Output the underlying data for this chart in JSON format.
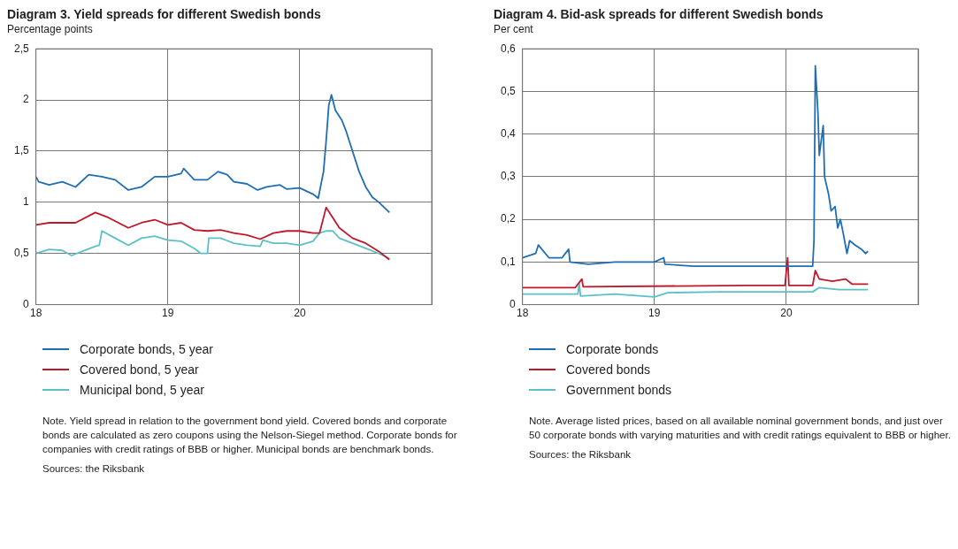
{
  "chart_data": [
    {
      "type": "line",
      "title": "Diagram 3. Yield spreads for different Swedish bonds",
      "subtitle": "Percentage points",
      "xlim": [
        18,
        21
      ],
      "xticks": [
        18,
        19,
        20,
        {
          "value": 21,
          "label": null
        }
      ],
      "ylim": [
        0,
        2.5
      ],
      "yticks": [
        0,
        {
          "value": 0.5,
          "label": "0,5"
        },
        1,
        {
          "value": 1.5,
          "label": "1,5"
        },
        2,
        {
          "value": 2.5,
          "label": "2,5"
        }
      ],
      "grid": true,
      "legend": "bottom",
      "marker": "none",
      "line_style": "solid",
      "series": [
        {
          "name": "Corporate bonds, 5 year",
          "color": "#1f6eb4",
          "x": [
            18.0,
            18.02,
            18.1,
            18.2,
            18.3,
            18.4,
            18.5,
            18.6,
            18.7,
            18.8,
            18.9,
            19.0,
            19.1,
            19.12,
            19.2,
            19.3,
            19.38,
            19.45,
            19.5,
            19.6,
            19.68,
            19.75,
            19.85,
            19.9,
            20.0,
            20.1,
            20.14,
            20.18,
            20.2,
            20.22,
            20.24,
            20.27,
            20.32,
            20.35,
            20.4,
            20.45,
            20.5,
            20.55,
            20.6,
            20.68
          ],
          "values": [
            1.25,
            1.2,
            1.17,
            1.2,
            1.15,
            1.27,
            1.25,
            1.22,
            1.12,
            1.15,
            1.25,
            1.25,
            1.28,
            1.33,
            1.22,
            1.22,
            1.3,
            1.27,
            1.2,
            1.18,
            1.12,
            1.15,
            1.17,
            1.13,
            1.14,
            1.08,
            1.04,
            1.3,
            1.6,
            1.95,
            2.05,
            1.9,
            1.8,
            1.7,
            1.5,
            1.3,
            1.15,
            1.05,
            1.0,
            0.9
          ]
        },
        {
          "name": "Covered bond, 5 year",
          "color": "#c0182a",
          "x": [
            18.0,
            18.1,
            18.2,
            18.3,
            18.45,
            18.55,
            18.7,
            18.8,
            18.9,
            19.0,
            19.1,
            19.2,
            19.3,
            19.4,
            19.5,
            19.6,
            19.7,
            19.8,
            19.9,
            20.0,
            20.1,
            20.15,
            20.2,
            20.25,
            20.3,
            20.4,
            20.5,
            20.6,
            20.68
          ],
          "values": [
            0.78,
            0.8,
            0.8,
            0.8,
            0.9,
            0.85,
            0.75,
            0.8,
            0.83,
            0.78,
            0.8,
            0.73,
            0.72,
            0.73,
            0.7,
            0.68,
            0.64,
            0.7,
            0.72,
            0.72,
            0.7,
            0.7,
            0.95,
            0.85,
            0.75,
            0.65,
            0.6,
            0.52,
            0.44
          ]
        },
        {
          "name": "Municipal bond, 5 year",
          "color": "#5bc0c8",
          "x": [
            18.0,
            18.1,
            18.2,
            18.27,
            18.35,
            18.45,
            18.48,
            18.5,
            18.6,
            18.7,
            18.8,
            18.9,
            19.0,
            19.1,
            19.2,
            19.25,
            19.3,
            19.31,
            19.4,
            19.5,
            19.6,
            19.7,
            19.72,
            19.8,
            19.9,
            20.0,
            20.1,
            20.15,
            20.2,
            20.25,
            20.3,
            20.4,
            20.5,
            20.6,
            20.68
          ],
          "values": [
            0.5,
            0.54,
            0.53,
            0.48,
            0.52,
            0.57,
            0.58,
            0.72,
            0.65,
            0.58,
            0.65,
            0.67,
            0.63,
            0.62,
            0.55,
            0.5,
            0.5,
            0.65,
            0.65,
            0.6,
            0.58,
            0.57,
            0.63,
            0.6,
            0.6,
            0.58,
            0.62,
            0.7,
            0.72,
            0.72,
            0.65,
            0.6,
            0.55,
            0.5,
            0.45
          ]
        }
      ],
      "annotations": [
        "Note. Yield spread in relation to the government bond yield. Covered bonds and corporate bonds are calculated as zero coupons using the Nelson-Siegel method. Corporate bonds for companies with credit ratings of BBB or higher. Municipal bonds are benchmark bonds.",
        "Sources: the Riksbank"
      ]
    },
    {
      "type": "line",
      "title": "Diagram 4. Bid-ask spreads for different Swedish bonds",
      "subtitle": "Per cent",
      "xlim": [
        18,
        21
      ],
      "xticks": [
        18,
        19,
        20,
        {
          "value": 21,
          "label": null
        }
      ],
      "ylim": [
        0,
        0.6
      ],
      "yticks": [
        0,
        {
          "value": 0.1,
          "label": "0,1"
        },
        {
          "value": 0.2,
          "label": "0,2"
        },
        {
          "value": 0.3,
          "label": "0,3"
        },
        {
          "value": 0.4,
          "label": "0,4"
        },
        {
          "value": 0.5,
          "label": "0,5"
        },
        {
          "value": 0.6,
          "label": "0,6"
        }
      ],
      "grid": true,
      "legend": "bottom",
      "marker": "none",
      "line_style": "solid",
      "series": [
        {
          "name": "Corporate bonds",
          "color": "#1f6eb4",
          "x": [
            18.0,
            18.1,
            18.12,
            18.2,
            18.3,
            18.35,
            18.36,
            18.5,
            18.7,
            18.9,
            19.0,
            19.07,
            19.08,
            19.3,
            19.5,
            19.8,
            20.0,
            20.2,
            20.21,
            20.22,
            20.24,
            20.25,
            20.28,
            20.29,
            20.32,
            20.34,
            20.37,
            20.39,
            20.41,
            20.43,
            20.46,
            20.48,
            20.52,
            20.57,
            20.6,
            20.62
          ],
          "values": [
            0.11,
            0.12,
            0.14,
            0.11,
            0.11,
            0.13,
            0.1,
            0.095,
            0.1,
            0.1,
            0.1,
            0.11,
            0.095,
            0.09,
            0.09,
            0.09,
            0.09,
            0.09,
            0.15,
            0.56,
            0.45,
            0.35,
            0.42,
            0.3,
            0.26,
            0.22,
            0.23,
            0.18,
            0.2,
            0.17,
            0.12,
            0.15,
            0.14,
            0.13,
            0.12,
            0.125
          ]
        },
        {
          "name": "Covered bonds",
          "color": "#c0182a",
          "x": [
            18.0,
            18.4,
            18.45,
            18.46,
            19.7,
            19.99,
            20.01,
            20.02,
            20.2,
            20.22,
            20.25,
            20.35,
            20.45,
            20.5,
            20.62
          ],
          "values": [
            0.04,
            0.04,
            0.06,
            0.042,
            0.045,
            0.045,
            0.11,
            0.045,
            0.045,
            0.08,
            0.06,
            0.055,
            0.06,
            0.048,
            0.048
          ]
        },
        {
          "name": "Government bonds",
          "color": "#5bc0c8",
          "x": [
            18.0,
            18.2,
            18.42,
            18.43,
            18.44,
            18.7,
            19.0,
            19.1,
            19.5,
            20.0,
            20.2,
            20.25,
            20.4,
            20.62
          ],
          "values": [
            0.025,
            0.025,
            0.025,
            0.05,
            0.02,
            0.025,
            0.018,
            0.028,
            0.03,
            0.03,
            0.03,
            0.04,
            0.035,
            0.035
          ]
        }
      ],
      "annotations": [
        "Note. Average listed prices, based on all available nominal government bonds, and just over 50 corporate bonds with varying maturities and with credit ratings equivalent to BBB or higher.",
        "Sources: the Riksbank"
      ]
    }
  ]
}
